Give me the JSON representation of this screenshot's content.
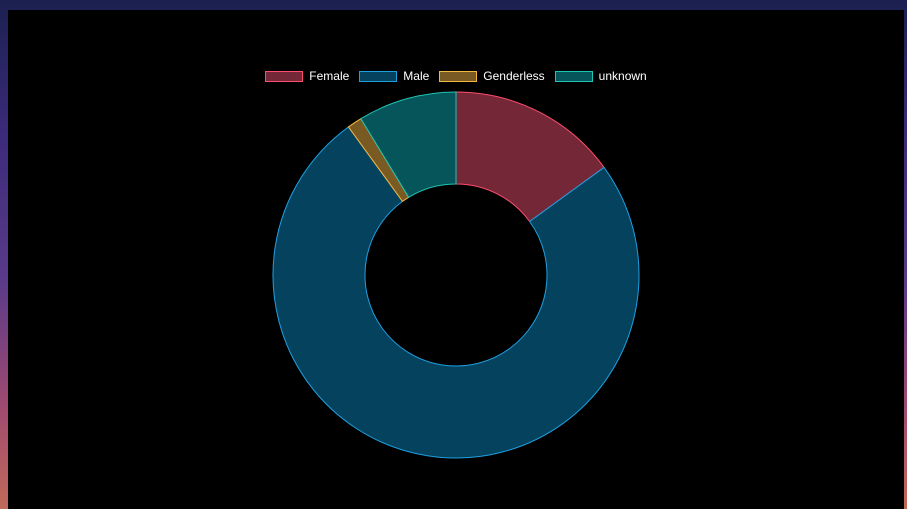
{
  "chart_data": {
    "type": "pie",
    "title": "",
    "legend_position": "top",
    "series": [
      {
        "values": [
          15,
          75,
          1.3,
          8.7
        ]
      }
    ],
    "categories": [
      "Female",
      "Male",
      "Genderless",
      "unknown"
    ],
    "colors": {
      "Female": {
        "fill": "#742737",
        "border": "#ff4d6d"
      },
      "Male": {
        "fill": "#05425e",
        "border": "#1e9fe0"
      },
      "Genderless": {
        "fill": "#7a5a23",
        "border": "#f0b840"
      },
      "unknown": {
        "fill": "#05555a",
        "border": "#1fc4b4"
      }
    }
  },
  "legend": {
    "items": [
      {
        "label": "Female"
      },
      {
        "label": "Male"
      },
      {
        "label": "Genderless"
      },
      {
        "label": "unknown"
      }
    ]
  }
}
